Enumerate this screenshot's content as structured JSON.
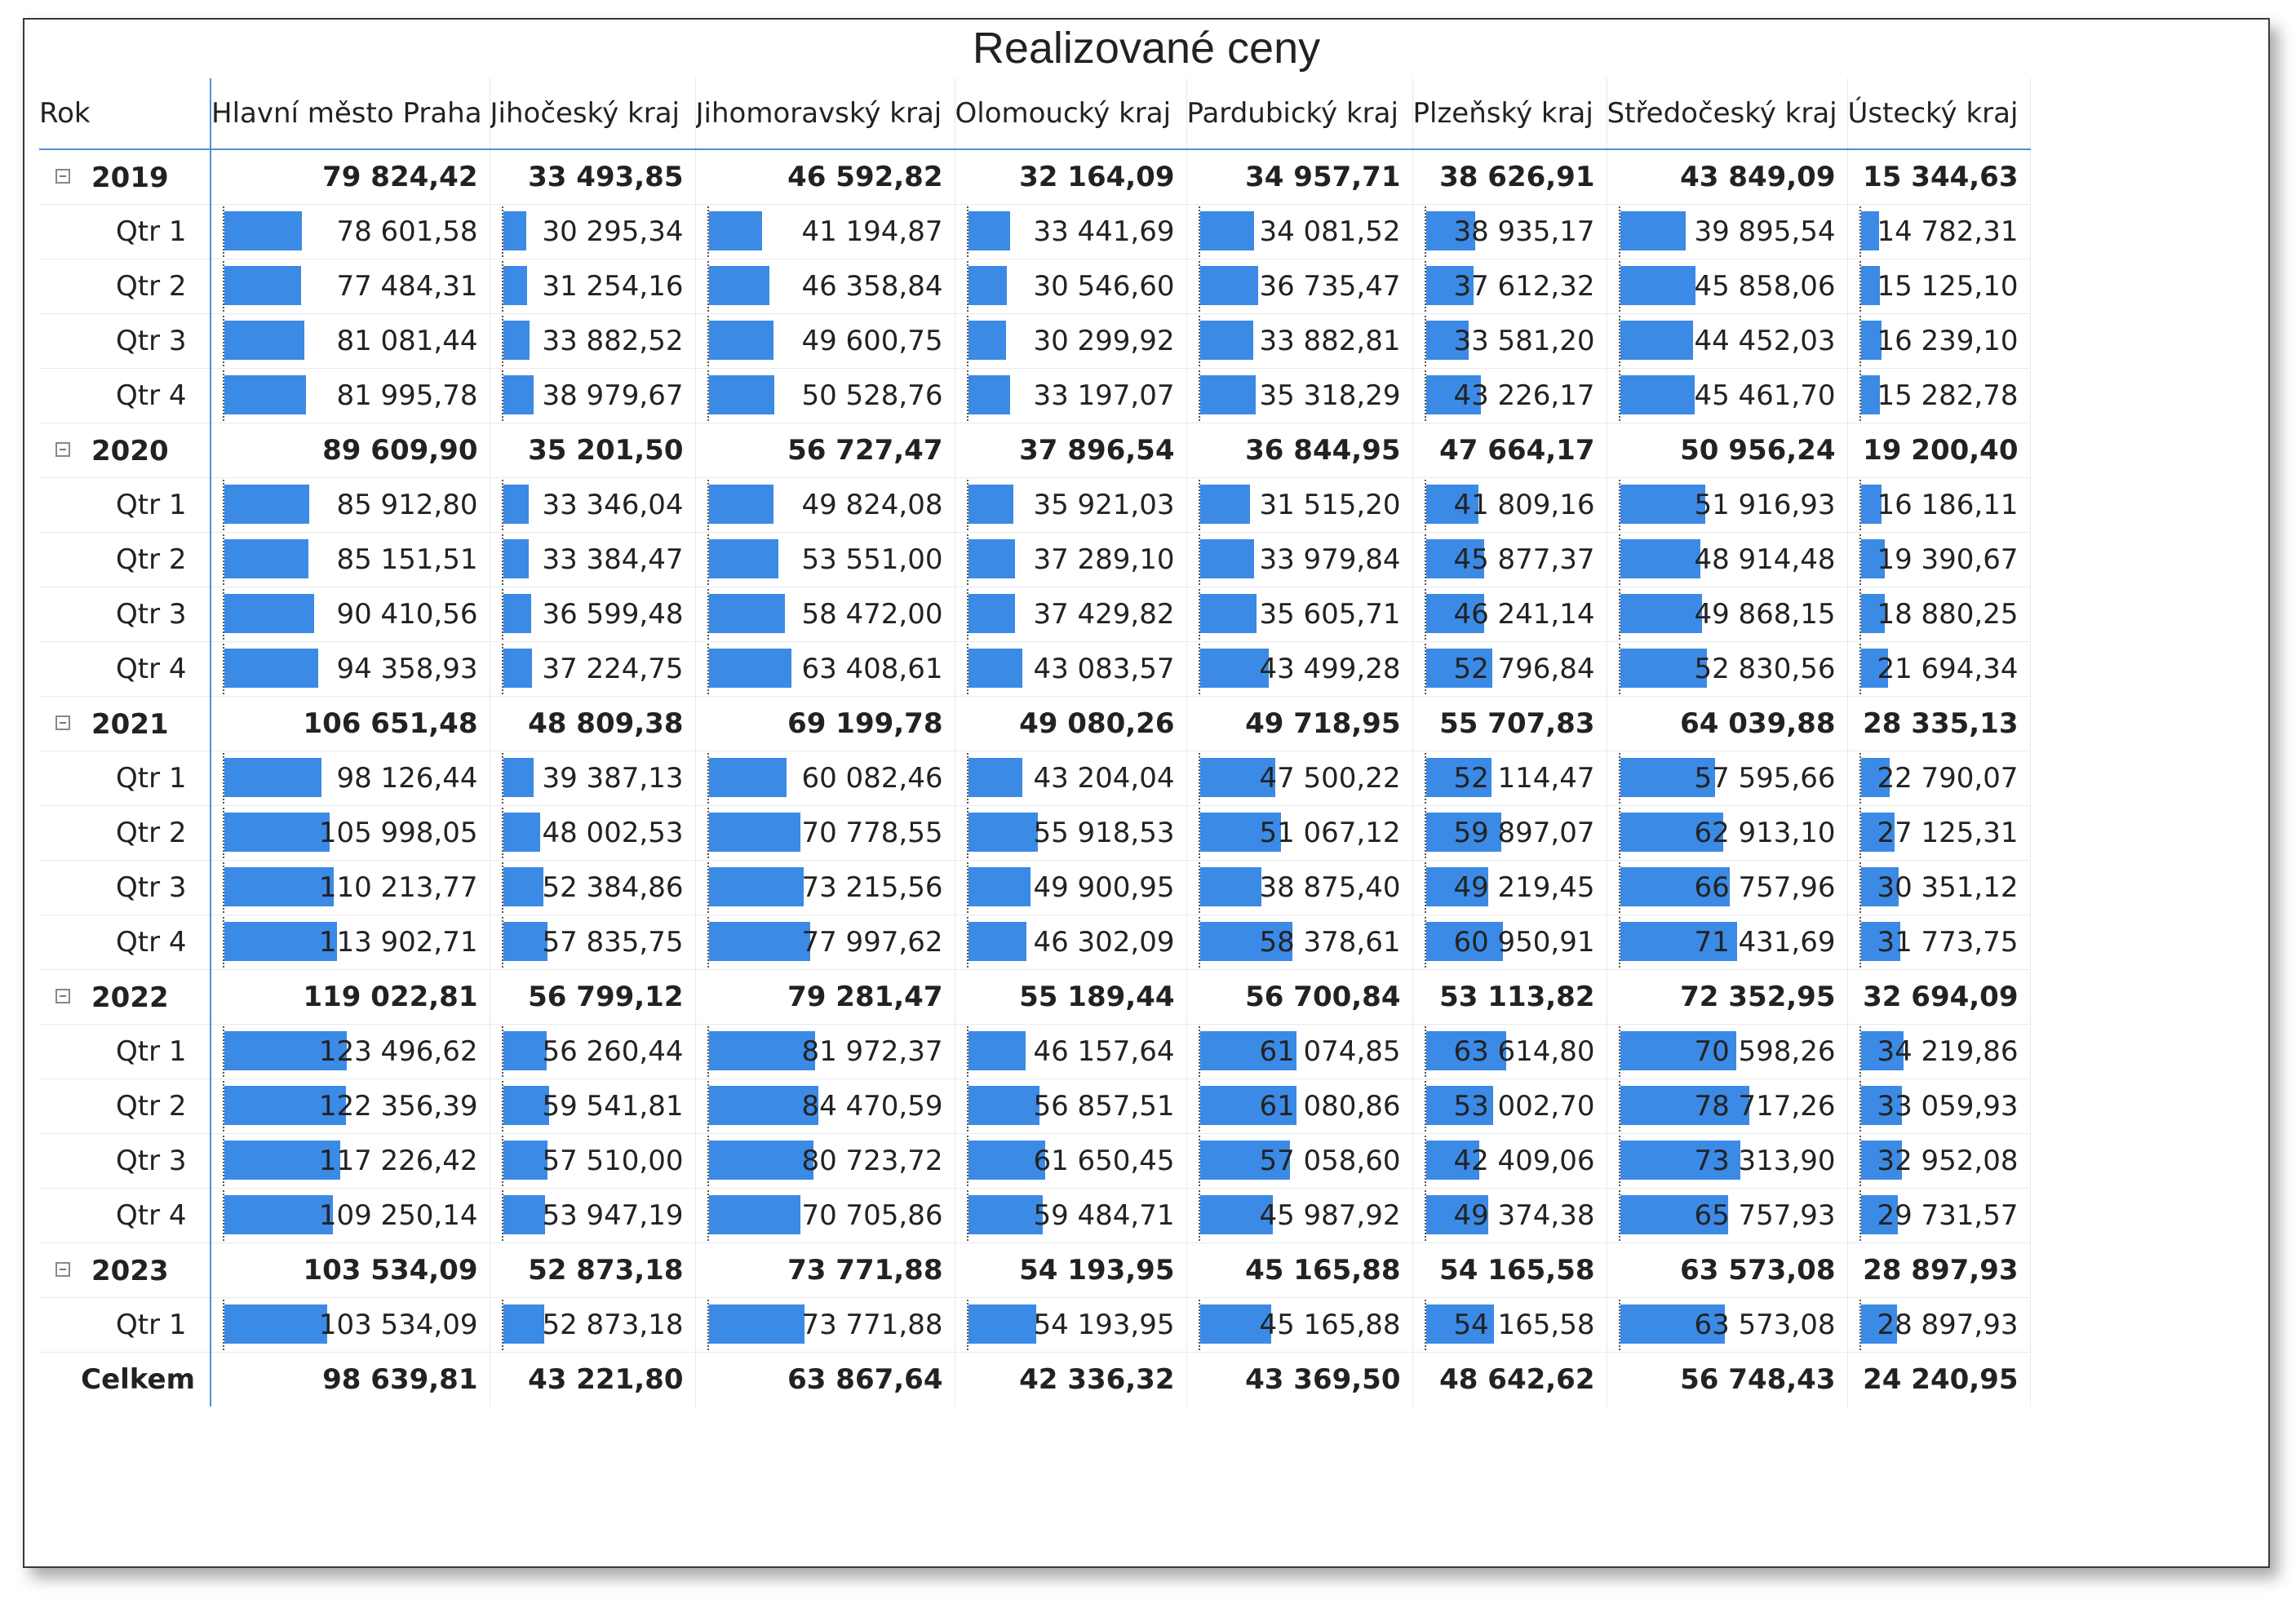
{
  "title": "Realizované ceny",
  "chart_data": {
    "type": "table",
    "title": "Realizované ceny",
    "row_header": "Rok",
    "columns": [
      "Hlavní město Praha",
      "Jihočeský kraj",
      "Jihomoravský kraj",
      "Olomoucký kraj",
      "Pardubický kraj",
      "Plzeňský kraj",
      "Středočeský kraj",
      "Ústecký kraj"
    ],
    "bar_color": "#3b8ae6",
    "years": [
      {
        "year": "2019",
        "total": [
          "79 824,42",
          "33 493,85",
          "46 592,82",
          "32 164,09",
          "34 957,71",
          "38 626,91",
          "43 849,09",
          "15 344,63"
        ],
        "quarters": [
          {
            "label": "Qtr 1",
            "values": [
              "78 601,58",
              "30 295,34",
              "41 194,87",
              "33 441,69",
              "34 081,52",
              "38 935,17",
              "39 895,54",
              "14 782,31"
            ]
          },
          {
            "label": "Qtr 2",
            "values": [
              "77 484,31",
              "31 254,16",
              "46 358,84",
              "30 546,60",
              "36 735,47",
              "37 612,32",
              "45 858,06",
              "15 125,10"
            ]
          },
          {
            "label": "Qtr 3",
            "values": [
              "81 081,44",
              "33 882,52",
              "49 600,75",
              "30 299,92",
              "33 882,81",
              "33 581,20",
              "44 452,03",
              "16 239,10"
            ]
          },
          {
            "label": "Qtr 4",
            "values": [
              "81 995,78",
              "38 979,67",
              "50 528,76",
              "33 197,07",
              "35 318,29",
              "43 226,17",
              "45 461,70",
              "15 282,78"
            ]
          }
        ]
      },
      {
        "year": "2020",
        "total": [
          "89 609,90",
          "35 201,50",
          "56 727,47",
          "37 896,54",
          "36 844,95",
          "47 664,17",
          "50 956,24",
          "19 200,40"
        ],
        "quarters": [
          {
            "label": "Qtr 1",
            "values": [
              "85 912,80",
              "33 346,04",
              "49 824,08",
              "35 921,03",
              "31 515,20",
              "41 809,16",
              "51 916,93",
              "16 186,11"
            ]
          },
          {
            "label": "Qtr 2",
            "values": [
              "85 151,51",
              "33 384,47",
              "53 551,00",
              "37 289,10",
              "33 979,84",
              "45 877,37",
              "48 914,48",
              "19 390,67"
            ]
          },
          {
            "label": "Qtr 3",
            "values": [
              "90 410,56",
              "36 599,48",
              "58 472,00",
              "37 429,82",
              "35 605,71",
              "46 241,14",
              "49 868,15",
              "18 880,25"
            ]
          },
          {
            "label": "Qtr 4",
            "values": [
              "94 358,93",
              "37 224,75",
              "63 408,61",
              "43 083,57",
              "43 499,28",
              "52 796,84",
              "52 830,56",
              "21 694,34"
            ]
          }
        ]
      },
      {
        "year": "2021",
        "total": [
          "106 651,48",
          "48 809,38",
          "69 199,78",
          "49 080,26",
          "49 718,95",
          "55 707,83",
          "64 039,88",
          "28 335,13"
        ],
        "quarters": [
          {
            "label": "Qtr 1",
            "values": [
              "98 126,44",
              "39 387,13",
              "60 082,46",
              "43 204,04",
              "47 500,22",
              "52 114,47",
              "57 595,66",
              "22 790,07"
            ]
          },
          {
            "label": "Qtr 2",
            "values": [
              "105 998,05",
              "48 002,53",
              "70 778,55",
              "55 918,53",
              "51 067,12",
              "59 897,07",
              "62 913,10",
              "27 125,31"
            ]
          },
          {
            "label": "Qtr 3",
            "values": [
              "110 213,77",
              "52 384,86",
              "73 215,56",
              "49 900,95",
              "38 875,40",
              "49 219,45",
              "66 757,96",
              "30 351,12"
            ]
          },
          {
            "label": "Qtr 4",
            "values": [
              "113 902,71",
              "57 835,75",
              "77 997,62",
              "46 302,09",
              "58 378,61",
              "60 950,91",
              "71 431,69",
              "31 773,75"
            ]
          }
        ]
      },
      {
        "year": "2022",
        "total": [
          "119 022,81",
          "56 799,12",
          "79 281,47",
          "55 189,44",
          "56 700,84",
          "53 113,82",
          "72 352,95",
          "32 694,09"
        ],
        "quarters": [
          {
            "label": "Qtr 1",
            "values": [
              "123 496,62",
              "56 260,44",
              "81 972,37",
              "46 157,64",
              "61 074,85",
              "63 614,80",
              "70 598,26",
              "34 219,86"
            ]
          },
          {
            "label": "Qtr 2",
            "values": [
              "122 356,39",
              "59 541,81",
              "84 470,59",
              "56 857,51",
              "61 080,86",
              "53 002,70",
              "78 717,26",
              "33 059,93"
            ]
          },
          {
            "label": "Qtr 3",
            "values": [
              "117 226,42",
              "57 510,00",
              "80 723,72",
              "61 650,45",
              "57 058,60",
              "42 409,06",
              "73 313,90",
              "32 952,08"
            ]
          },
          {
            "label": "Qtr 4",
            "values": [
              "109 250,14",
              "53 947,19",
              "70 705,86",
              "59 484,71",
              "45 987,92",
              "49 374,38",
              "65 757,93",
              "29 731,57"
            ]
          }
        ]
      },
      {
        "year": "2023",
        "total": [
          "103 534,09",
          "52 873,18",
          "73 771,88",
          "54 193,95",
          "45 165,88",
          "54 165,58",
          "63 573,08",
          "28 897,93"
        ],
        "quarters": [
          {
            "label": "Qtr 1",
            "values": [
              "103 534,09",
              "52 873,18",
              "73 771,88",
              "54 193,95",
              "45 165,88",
              "54 165,58",
              "63 573,08",
              "28 897,93"
            ]
          }
        ]
      }
    ],
    "grand_total_label": "Celkem",
    "grand_total": [
      "98 639,81",
      "43 221,80",
      "63 867,64",
      "42 336,32",
      "43 369,50",
      "48 642,62",
      "56 748,43",
      "24 240,95"
    ]
  }
}
